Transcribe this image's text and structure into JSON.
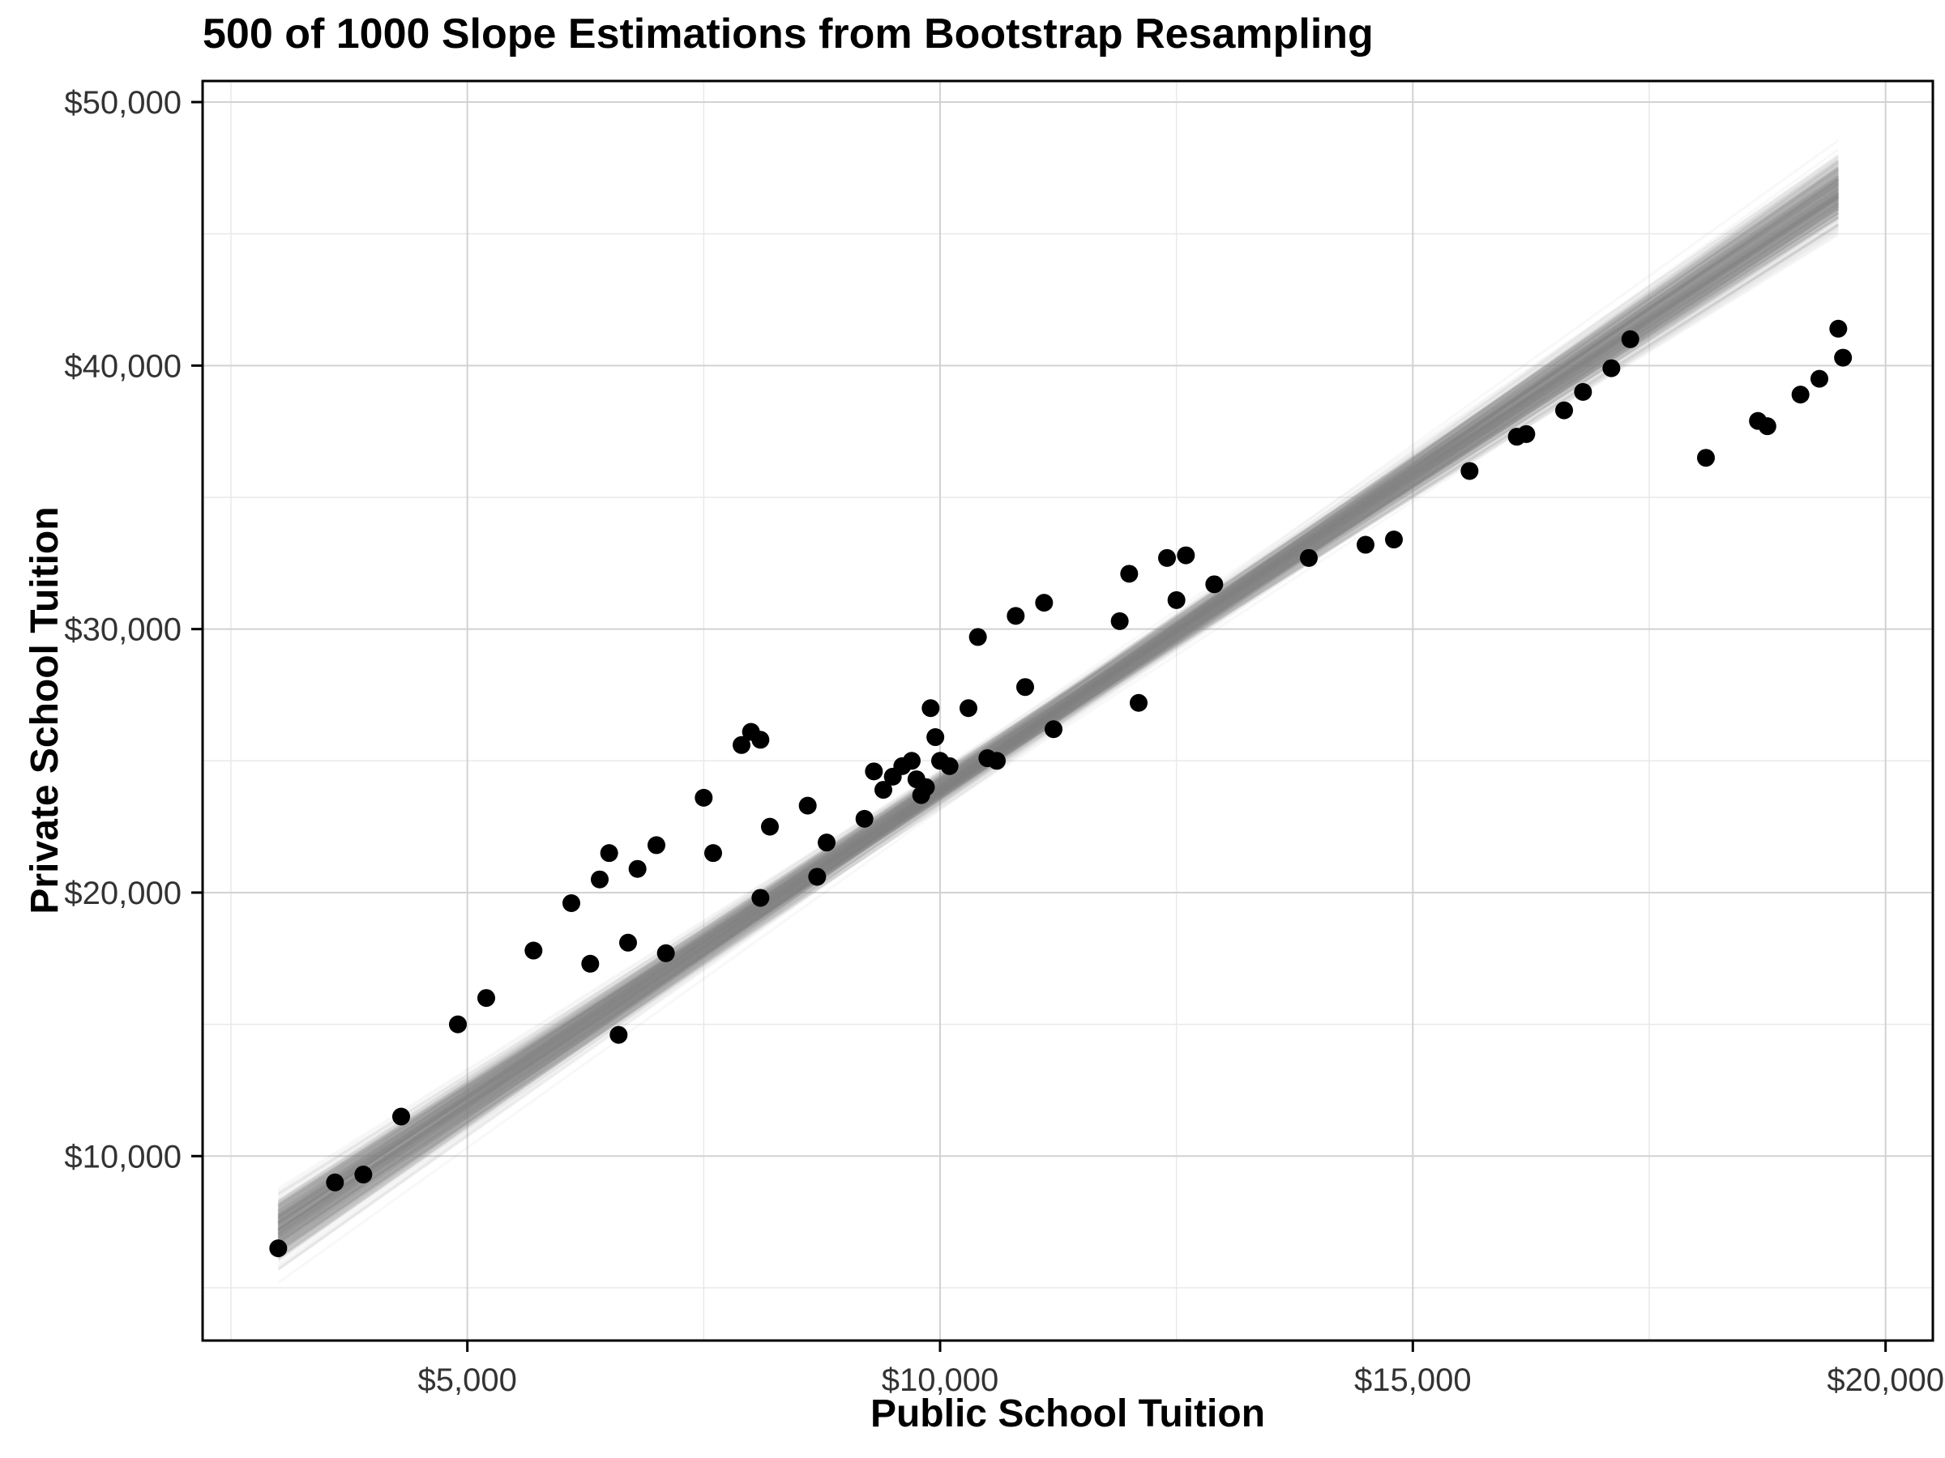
{
  "page": {
    "background_color": "#ffffff"
  },
  "chart_data": {
    "type": "scatter",
    "title": "500 of 1000 Slope Estimations from Bootstrap Resampling",
    "xlabel": "Public School Tuition",
    "ylabel": "Private School Tuition",
    "x_domain": [
      2200,
      20500
    ],
    "y_domain": [
      3000,
      50800
    ],
    "x_ticks": [
      {
        "value": 5000,
        "label": "$5,000"
      },
      {
        "value": 10000,
        "label": "$10,000"
      },
      {
        "value": 15000,
        "label": "$15,000"
      },
      {
        "value": 20000,
        "label": "$20,000"
      }
    ],
    "y_ticks": [
      {
        "value": 10000,
        "label": "$10,000"
      },
      {
        "value": 20000,
        "label": "$20,000"
      },
      {
        "value": 30000,
        "label": "$30,000"
      },
      {
        "value": 40000,
        "label": "$40,000"
      },
      {
        "value": 50000,
        "label": "$50,000"
      }
    ],
    "x_minor_ticks": [
      2500,
      7500,
      12500,
      17500
    ],
    "y_minor_ticks": [
      5000,
      15000,
      25000,
      35000,
      45000
    ],
    "grid": {
      "major_color": "#d2d2d2",
      "minor_color": "#e9e9e9",
      "panel_border_color": "#000000",
      "panel_background": "#ffffff",
      "legend": "none"
    },
    "point_color": "#000000",
    "point_radius": 11,
    "points": [
      [
        3000,
        6500
      ],
      [
        3600,
        9000
      ],
      [
        3900,
        9300
      ],
      [
        4300,
        11500
      ],
      [
        4900,
        15000
      ],
      [
        5200,
        16000
      ],
      [
        5700,
        17800
      ],
      [
        6100,
        19600
      ],
      [
        6300,
        17300
      ],
      [
        6400,
        20500
      ],
      [
        6500,
        21500
      ],
      [
        6600,
        14600
      ],
      [
        6700,
        18100
      ],
      [
        6800,
        20900
      ],
      [
        7000,
        21800
      ],
      [
        7100,
        17700
      ],
      [
        7500,
        23600
      ],
      [
        7600,
        21500
      ],
      [
        7900,
        25600
      ],
      [
        8000,
        26100
      ],
      [
        8100,
        25800
      ],
      [
        8100,
        19800
      ],
      [
        8200,
        22500
      ],
      [
        8600,
        23300
      ],
      [
        8700,
        20600
      ],
      [
        8800,
        21900
      ],
      [
        9200,
        22800
      ],
      [
        9300,
        24600
      ],
      [
        9400,
        23900
      ],
      [
        9500,
        24400
      ],
      [
        9600,
        24800
      ],
      [
        9700,
        25000
      ],
      [
        9750,
        24300
      ],
      [
        9800,
        23700
      ],
      [
        9850,
        24000
      ],
      [
        9900,
        27000
      ],
      [
        9950,
        25900
      ],
      [
        10000,
        25000
      ],
      [
        10100,
        24800
      ],
      [
        10300,
        27000
      ],
      [
        10400,
        29700
      ],
      [
        10500,
        25100
      ],
      [
        10600,
        25000
      ],
      [
        10800,
        30500
      ],
      [
        10900,
        27800
      ],
      [
        11100,
        31000
      ],
      [
        11200,
        26200
      ],
      [
        11900,
        30300
      ],
      [
        12000,
        32100
      ],
      [
        12100,
        27200
      ],
      [
        12400,
        32700
      ],
      [
        12500,
        31100
      ],
      [
        12600,
        32800
      ],
      [
        12900,
        31700
      ],
      [
        13900,
        32700
      ],
      [
        14500,
        33200
      ],
      [
        14800,
        33400
      ],
      [
        15600,
        36000
      ],
      [
        16100,
        37300
      ],
      [
        16200,
        37400
      ],
      [
        16600,
        38300
      ],
      [
        16800,
        39000
      ],
      [
        17100,
        39900
      ],
      [
        17300,
        41000
      ],
      [
        18100,
        36500
      ],
      [
        18650,
        37900
      ],
      [
        18750,
        37700
      ],
      [
        19100,
        38900
      ],
      [
        19300,
        39500
      ],
      [
        19500,
        41400
      ],
      [
        19550,
        40300
      ]
    ],
    "bootstrap_lines": {
      "count": 500,
      "color": "#8c8c8c",
      "opacity": 0.06,
      "stroke_width": 3,
      "x_start": 3000,
      "x_end": 19500,
      "pivot_x": 11200,
      "pivot_y": 26800,
      "slope_mean": 2.38,
      "slope_sd": 0.07,
      "jitter_sd": 250,
      "seed": 42
    }
  }
}
